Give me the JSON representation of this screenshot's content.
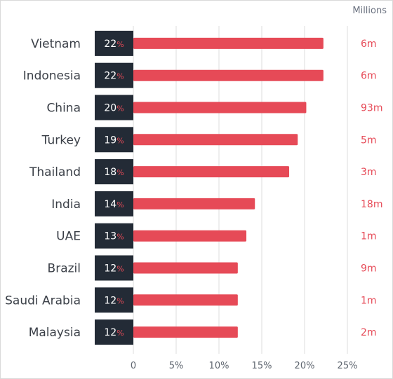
{
  "chart_data": {
    "type": "bar",
    "orientation": "horizontal",
    "categories": [
      "Vietnam",
      "Indonesia",
      "China",
      "Turkey",
      "Thailand",
      "India",
      "UAE",
      "Brazil",
      "Saudi Arabia",
      "Malaysia"
    ],
    "values": [
      22.2,
      22.2,
      20.2,
      19.2,
      18.2,
      14.2,
      13.2,
      12.2,
      12.2,
      12.2
    ],
    "value_labels": [
      "22",
      "22",
      "20",
      "19",
      "18",
      "14",
      "13",
      "12",
      "12",
      "12"
    ],
    "value_suffix": "%",
    "right_labels": [
      "6m",
      "6m",
      "93m",
      "5m",
      "3m",
      "18m",
      "1m",
      "9m",
      "1m",
      "2m"
    ],
    "right_axis_label": "Millions",
    "xlim": [
      0,
      25
    ],
    "xticks": [
      0,
      5,
      10,
      15,
      20,
      25
    ],
    "xtick_labels": [
      "0",
      "5%",
      "10%",
      "15%",
      "20%",
      "25%"
    ],
    "grid": true,
    "colors": {
      "bar": "#e64a57",
      "value_box": "#232b36",
      "right_label": "#e64a57",
      "grid": "#dcdcdc",
      "text": "#3a3f47"
    }
  }
}
